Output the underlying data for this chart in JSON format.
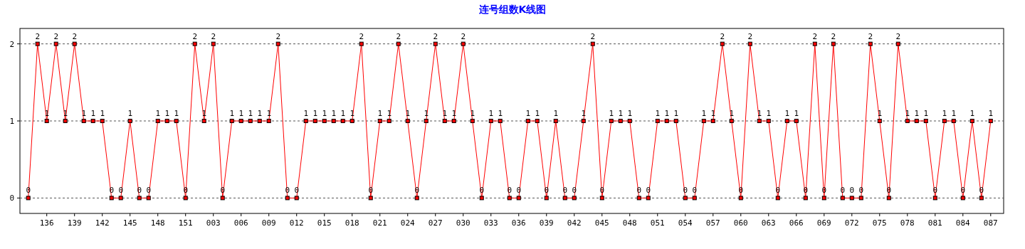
{
  "chart_data": {
    "type": "line",
    "title": "连号组数K线图",
    "categories": [
      null,
      null,
      "136",
      null,
      null,
      "139",
      null,
      null,
      "142",
      null,
      null,
      "145",
      null,
      null,
      "148",
      null,
      null,
      "151",
      null,
      null,
      "003",
      null,
      null,
      "006",
      null,
      null,
      "009",
      null,
      null,
      "012",
      null,
      null,
      "015",
      null,
      null,
      "018",
      null,
      null,
      "021",
      null,
      null,
      "024",
      null,
      null,
      "027",
      null,
      null,
      "030",
      null,
      null,
      "033",
      null,
      null,
      "036",
      null,
      null,
      "039",
      null,
      null,
      "042",
      null,
      null,
      "045",
      null,
      null,
      "048",
      null,
      null,
      "051",
      null,
      null,
      "054",
      null,
      null,
      "057",
      null,
      null,
      "060",
      null,
      null,
      "063",
      null,
      null,
      "066",
      null,
      null,
      "069",
      null,
      null,
      "072",
      null,
      null,
      "075",
      null,
      null,
      "078",
      null,
      null,
      "081",
      null,
      null,
      "084",
      null,
      null,
      "087"
    ],
    "series": [
      {
        "color": "#ff0000",
        "values": [
          0,
          2,
          1,
          2,
          1,
          2,
          1,
          1,
          1,
          0,
          0,
          1,
          0,
          0,
          1,
          1,
          1,
          0,
          2,
          1,
          2,
          0,
          1,
          1,
          1,
          1,
          1,
          2,
          0,
          0,
          1,
          1,
          1,
          1,
          1,
          1,
          2,
          0,
          1,
          1,
          2,
          1,
          0,
          1,
          2,
          1,
          1,
          2,
          1,
          0,
          1,
          1,
          0,
          0,
          1,
          1,
          0,
          1,
          0,
          0,
          1,
          2,
          0,
          1,
          1,
          1,
          0,
          0,
          1,
          1,
          1,
          0,
          0,
          1,
          1,
          2,
          1,
          0,
          2,
          1,
          1,
          0,
          1,
          1,
          0,
          2,
          0,
          2,
          0,
          0,
          0,
          2,
          1,
          0,
          2,
          1,
          1,
          1,
          0,
          1,
          1,
          0,
          1,
          0,
          1
        ]
      }
    ],
    "ylim": [
      -0.2,
      2.2
    ],
    "yticks": [
      0,
      1,
      2
    ],
    "grid": "y",
    "marker": "square",
    "data_labels": true
  }
}
